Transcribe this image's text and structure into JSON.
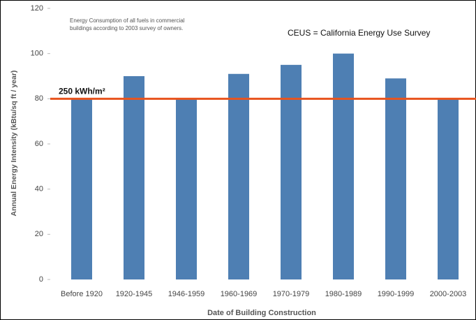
{
  "chart_data": {
    "type": "bar",
    "annotation_lines": [
      "Energy Consumption of all fuels in commercial",
      "buildings according to 2003 survey of owners."
    ],
    "note": "CEUS = California Energy Use Survey",
    "x_label": "Date of Building Construction",
    "y_label": "Annual Energy Intensity (kBtu/sq ft / year)",
    "categories": [
      "Before 1920",
      "1920-1945",
      "1946-1959",
      "1960-1969",
      "1970-1979",
      "1980-1989",
      "1990-1999",
      "2000-2003"
    ],
    "values": [
      80,
      90,
      80,
      91,
      95,
      100,
      89,
      80
    ],
    "color": "#4e7fb3",
    "ylim": [
      0,
      120
    ],
    "yticks": [
      0,
      20,
      40,
      60,
      80,
      100,
      120
    ],
    "reference_line": {
      "value": 80,
      "label": "250 kWh/m²",
      "color": "#e8541e"
    }
  }
}
